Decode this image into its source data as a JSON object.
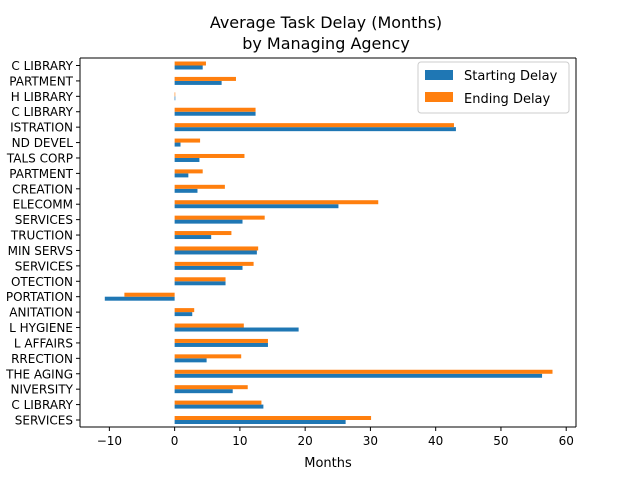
{
  "chart_data": {
    "type": "bar",
    "orientation": "horizontal",
    "title_line1": "Average Task Delay (Months)",
    "title_line2": "by Managing Agency",
    "xlabel": "Months",
    "ylabel": "",
    "xlim": [
      -14.5,
      61.5
    ],
    "xticks": [
      -10,
      0,
      10,
      20,
      30,
      40,
      50,
      60
    ],
    "grid": false,
    "legend_position": "top-right",
    "categories": [
      "C LIBRARY",
      "PARTMENT",
      "H LIBRARY",
      "C LIBRARY",
      "ISTRATION",
      "ND DEVEL",
      "TALS CORP",
      "PARTMENT",
      "CREATION",
      "ELECOMM",
      "SERVICES",
      "TRUCTION",
      "MIN SERVS",
      "SERVICES",
      "OTECTION",
      "PORTATION",
      "ANITATION",
      "L HYGIENE",
      "L AFFAIRS",
      "RRECTION",
      "THE AGING",
      "NIVERSITY",
      "C LIBRARY",
      "SERVICES"
    ],
    "series": [
      {
        "name": "Starting Delay",
        "color": "#1f77b4",
        "values": [
          4.3,
          7.2,
          0.1,
          12.4,
          43.1,
          0.9,
          3.8,
          2.1,
          3.5,
          25.1,
          10.4,
          5.6,
          12.6,
          10.4,
          7.8,
          -10.7,
          2.7,
          19.0,
          14.3,
          4.9,
          56.3,
          8.9,
          13.6,
          26.2
        ]
      },
      {
        "name": "Ending Delay",
        "color": "#ff7f0e",
        "values": [
          4.8,
          9.4,
          0.0,
          12.4,
          42.8,
          3.9,
          10.7,
          4.3,
          7.7,
          31.2,
          13.8,
          8.7,
          12.8,
          12.1,
          7.8,
          -7.7,
          3.0,
          10.6,
          14.3,
          10.2,
          57.9,
          11.2,
          13.3,
          30.1
        ]
      }
    ]
  }
}
